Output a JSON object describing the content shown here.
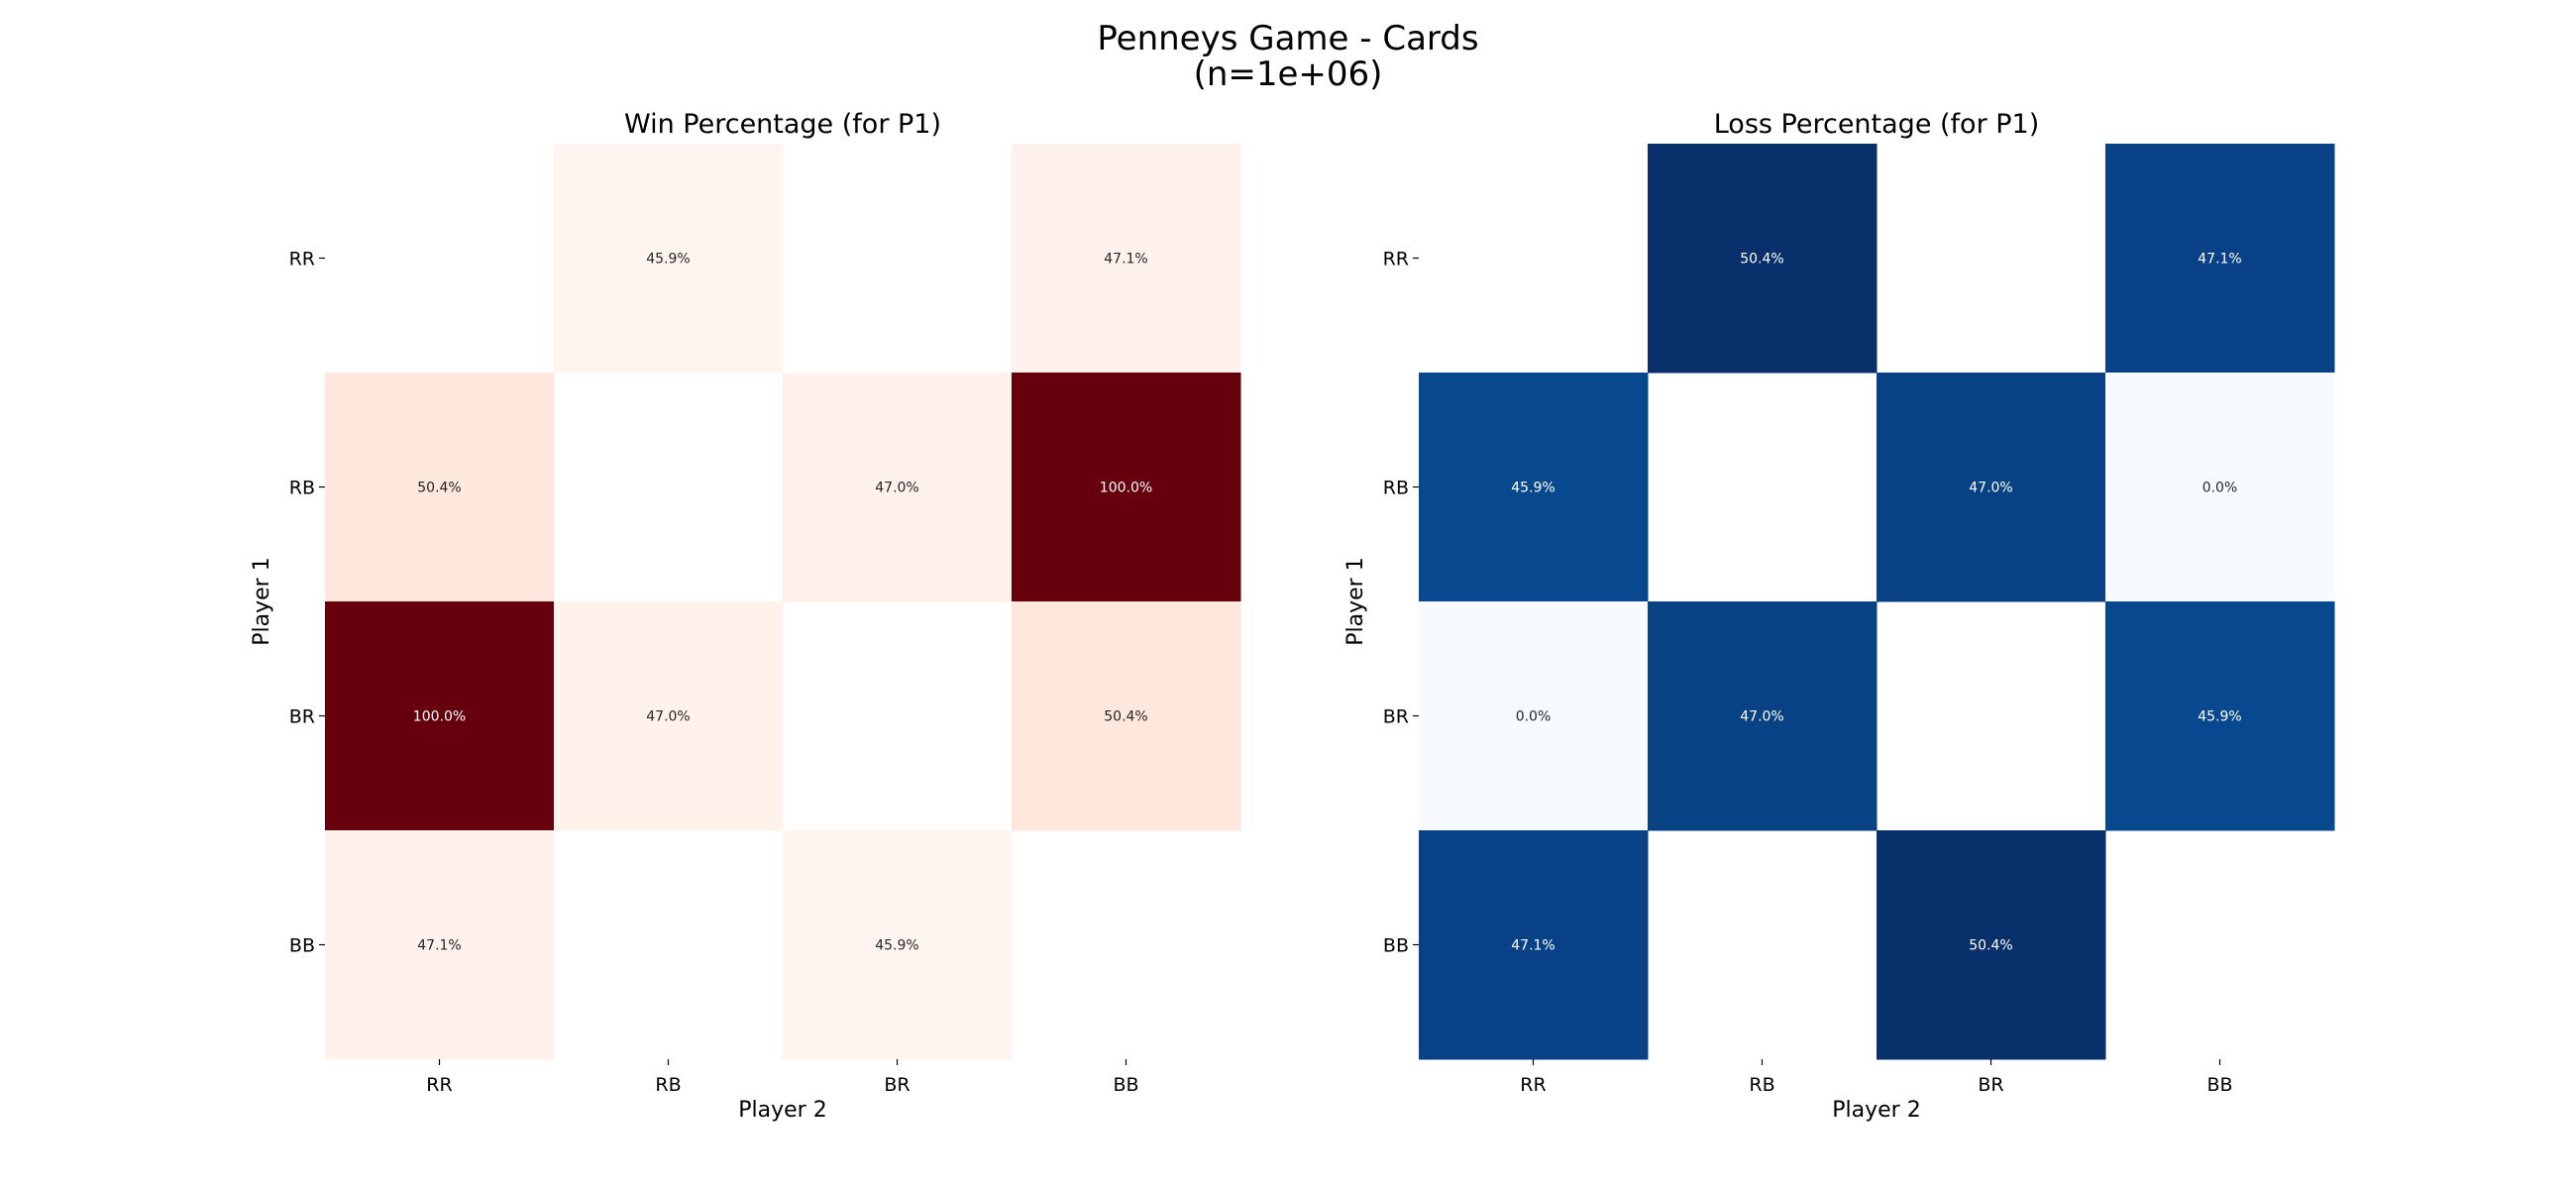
{
  "figure": {
    "title_line1": "Penneys Game - Cards",
    "title_line2": "(n=1e+06)"
  },
  "chart_data": [
    {
      "type": "heatmap",
      "title": "Win Percentage (for P1)",
      "xlabel": "Player 2",
      "ylabel": "Player 1",
      "x_categories": [
        "RR",
        "RB",
        "BR",
        "BB"
      ],
      "y_categories": [
        "RR",
        "RB",
        "BR",
        "BB"
      ],
      "colormap": "Reds",
      "vmin": 45.9,
      "vmax": 100.0,
      "values": [
        [
          null,
          45.9,
          null,
          47.1
        ],
        [
          50.4,
          null,
          47.0,
          100.0
        ],
        [
          100.0,
          47.0,
          null,
          50.4
        ],
        [
          47.1,
          null,
          45.9,
          null
        ]
      ],
      "annotations": [
        [
          "",
          "45.9%",
          "",
          "47.1%"
        ],
        [
          "50.4%",
          "",
          "47.0%",
          "100.0%"
        ],
        [
          "100.0%",
          "47.0%",
          "",
          "50.4%"
        ],
        [
          "47.1%",
          "",
          "45.9%",
          ""
        ]
      ]
    },
    {
      "type": "heatmap",
      "title": "Loss Percentage (for P1)",
      "xlabel": "Player 2",
      "ylabel": "Player 1",
      "x_categories": [
        "RR",
        "RB",
        "BR",
        "BB"
      ],
      "y_categories": [
        "RR",
        "RB",
        "BR",
        "BB"
      ],
      "colormap": "Blues",
      "vmin": 0.0,
      "vmax": 50.4,
      "values": [
        [
          null,
          50.4,
          null,
          47.1
        ],
        [
          45.9,
          null,
          47.0,
          0.0
        ],
        [
          0.0,
          47.0,
          null,
          45.9
        ],
        [
          47.1,
          null,
          50.4,
          null
        ]
      ],
      "annotations": [
        [
          "",
          "50.4%",
          "",
          "47.1%"
        ],
        [
          "45.9%",
          "",
          "47.0%",
          "0.0%"
        ],
        [
          "0.0%",
          "47.0%",
          "",
          "45.9%"
        ],
        [
          "47.1%",
          "",
          "50.4%",
          ""
        ]
      ]
    }
  ]
}
